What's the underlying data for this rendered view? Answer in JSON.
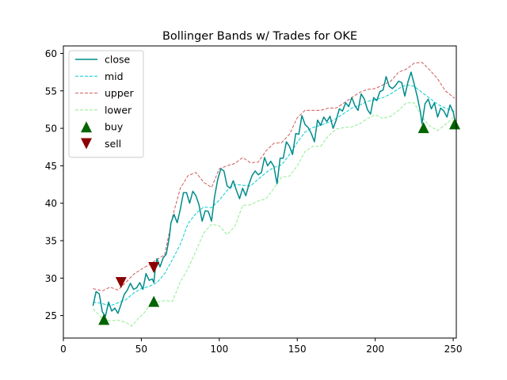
{
  "chart_data": {
    "type": "line",
    "title": "Bollinger Bands w/ Trades for OKE",
    "xlabel": "",
    "ylabel": "",
    "xlim": [
      0,
      252
    ],
    "ylim": [
      22,
      61
    ],
    "x_ticks": [
      0,
      50,
      100,
      150,
      200,
      250
    ],
    "y_ticks": [
      25,
      30,
      35,
      40,
      45,
      50,
      55,
      60
    ],
    "grid": false,
    "legend_position": "upper left",
    "series": [
      {
        "name": "close",
        "color": "#008b8b",
        "style": "solid",
        "points": [
          [
            19,
            26.3
          ],
          [
            21,
            28.2
          ],
          [
            23,
            27.9
          ],
          [
            25,
            25.5
          ],
          [
            27,
            24.9
          ],
          [
            29,
            26.8
          ],
          [
            31,
            25.6
          ],
          [
            33,
            26.0
          ],
          [
            35,
            25.3
          ],
          [
            37,
            26.5
          ],
          [
            39,
            27.8
          ],
          [
            41,
            28.4
          ],
          [
            43,
            29.3
          ],
          [
            45,
            28.5
          ],
          [
            47,
            28.7
          ],
          [
            49,
            29.4
          ],
          [
            51,
            28.5
          ],
          [
            53,
            30.6
          ],
          [
            55,
            29.7
          ],
          [
            57,
            29.9
          ],
          [
            58,
            29.4
          ],
          [
            59,
            31.3
          ],
          [
            60,
            32.6
          ],
          [
            62,
            31.5
          ],
          [
            64,
            32.7
          ],
          [
            66,
            33.2
          ],
          [
            68,
            35.5
          ],
          [
            69,
            37.4
          ],
          [
            71,
            38.5
          ],
          [
            73,
            37.4
          ],
          [
            75,
            39.2
          ],
          [
            77,
            41.4
          ],
          [
            79,
            41.4
          ],
          [
            81,
            40.0
          ],
          [
            83,
            41.6
          ],
          [
            85,
            41.0
          ],
          [
            87,
            39.8
          ],
          [
            89,
            37.6
          ],
          [
            91,
            39.0
          ],
          [
            93,
            38.9
          ],
          [
            95,
            37.6
          ],
          [
            97,
            40.9
          ],
          [
            99,
            43.2
          ],
          [
            101,
            44.6
          ],
          [
            103,
            44.3
          ],
          [
            105,
            42.3
          ],
          [
            107,
            42.0
          ],
          [
            109,
            43.0
          ],
          [
            111,
            41.7
          ],
          [
            113,
            40.6
          ],
          [
            115,
            42.0
          ],
          [
            117,
            41.0
          ],
          [
            119,
            42.5
          ],
          [
            121,
            43.7
          ],
          [
            123,
            44.3
          ],
          [
            125,
            43.8
          ],
          [
            127,
            44.1
          ],
          [
            129,
            46.1
          ],
          [
            131,
            45.0
          ],
          [
            133,
            45.6
          ],
          [
            135,
            44.9
          ],
          [
            137,
            42.6
          ],
          [
            139,
            46.0
          ],
          [
            141,
            46.0
          ],
          [
            143,
            48.2
          ],
          [
            145,
            47.6
          ],
          [
            147,
            46.5
          ],
          [
            149,
            49.3
          ],
          [
            151,
            49.2
          ],
          [
            153,
            51.7
          ],
          [
            155,
            50.5
          ],
          [
            157,
            50.1
          ],
          [
            159,
            49.3
          ],
          [
            161,
            48.2
          ],
          [
            163,
            51.1
          ],
          [
            165,
            50.4
          ],
          [
            167,
            51.5
          ],
          [
            169,
            50.9
          ],
          [
            171,
            51.6
          ],
          [
            173,
            50.0
          ],
          [
            175,
            51.1
          ],
          [
            177,
            52.6
          ],
          [
            179,
            52.3
          ],
          [
            181,
            53.4
          ],
          [
            183,
            52.9
          ],
          [
            185,
            54.1
          ],
          [
            187,
            53.0
          ],
          [
            189,
            52.4
          ],
          [
            191,
            54.6
          ],
          [
            193,
            53.9
          ],
          [
            195,
            52.5
          ],
          [
            197,
            51.9
          ],
          [
            199,
            54.1
          ],
          [
            201,
            53.7
          ],
          [
            203,
            54.9
          ],
          [
            205,
            55.1
          ],
          [
            207,
            56.9
          ],
          [
            209,
            55.6
          ],
          [
            211,
            55.3
          ],
          [
            213,
            55.7
          ],
          [
            215,
            56.3
          ],
          [
            217,
            56.1
          ],
          [
            219,
            54.3
          ],
          [
            221,
            56.2
          ],
          [
            223,
            57.5
          ],
          [
            225,
            55.9
          ],
          [
            227,
            54.2
          ],
          [
            229,
            52.2
          ],
          [
            230,
            50.6
          ],
          [
            232,
            53.3
          ],
          [
            234,
            53.9
          ],
          [
            236,
            52.6
          ],
          [
            238,
            53.4
          ],
          [
            240,
            51.5
          ],
          [
            242,
            52.7
          ],
          [
            244,
            52.3
          ],
          [
            246,
            51.5
          ],
          [
            248,
            53.1
          ],
          [
            250,
            52.2
          ],
          [
            251,
            51.2
          ]
        ]
      },
      {
        "name": "mid",
        "color": "#00ced1",
        "style": "dashed",
        "points": [
          [
            19,
            26.8
          ],
          [
            25,
            26.6
          ],
          [
            30,
            26.3
          ],
          [
            35,
            26.7
          ],
          [
            40,
            27.1
          ],
          [
            45,
            28.0
          ],
          [
            50,
            28.6
          ],
          [
            55,
            28.9
          ],
          [
            60,
            29.4
          ],
          [
            65,
            30.6
          ],
          [
            70,
            32.5
          ],
          [
            75,
            34.5
          ],
          [
            80,
            37.3
          ],
          [
            85,
            38.6
          ],
          [
            90,
            39.5
          ],
          [
            95,
            39.4
          ],
          [
            100,
            40.4
          ],
          [
            105,
            41.7
          ],
          [
            110,
            42.5
          ],
          [
            115,
            42.4
          ],
          [
            120,
            42.3
          ],
          [
            125,
            43.2
          ],
          [
            130,
            44.1
          ],
          [
            135,
            44.8
          ],
          [
            140,
            45.1
          ],
          [
            145,
            46.5
          ],
          [
            150,
            48.1
          ],
          [
            155,
            49.5
          ],
          [
            160,
            50.1
          ],
          [
            165,
            50.4
          ],
          [
            170,
            50.8
          ],
          [
            175,
            51.3
          ],
          [
            180,
            52.0
          ],
          [
            185,
            52.7
          ],
          [
            190,
            53.1
          ],
          [
            195,
            53.6
          ],
          [
            200,
            53.8
          ],
          [
            205,
            54.1
          ],
          [
            210,
            54.6
          ],
          [
            215,
            55.3
          ],
          [
            220,
            55.8
          ],
          [
            225,
            55.6
          ],
          [
            230,
            54.8
          ],
          [
            235,
            54.0
          ],
          [
            240,
            53.2
          ],
          [
            245,
            52.7
          ],
          [
            251,
            52.2
          ]
        ]
      },
      {
        "name": "upper",
        "color": "#cd5c5c",
        "style": "dashed",
        "points": [
          [
            19,
            28.6
          ],
          [
            25,
            28.3
          ],
          [
            30,
            28.8
          ],
          [
            35,
            28.4
          ],
          [
            40,
            29.4
          ],
          [
            45,
            30.5
          ],
          [
            50,
            31.2
          ],
          [
            55,
            31.8
          ],
          [
            60,
            32.5
          ],
          [
            65,
            33.1
          ],
          [
            70,
            38.2
          ],
          [
            75,
            42.0
          ],
          [
            80,
            43.7
          ],
          [
            85,
            44.1
          ],
          [
            90,
            42.8
          ],
          [
            95,
            42.1
          ],
          [
            100,
            44.6
          ],
          [
            105,
            45.0
          ],
          [
            110,
            45.3
          ],
          [
            115,
            46.1
          ],
          [
            120,
            45.4
          ],
          [
            125,
            45.5
          ],
          [
            130,
            47.0
          ],
          [
            135,
            48.0
          ],
          [
            140,
            48.1
          ],
          [
            145,
            49.2
          ],
          [
            150,
            51.4
          ],
          [
            155,
            52.4
          ],
          [
            160,
            52.4
          ],
          [
            165,
            52.4
          ],
          [
            170,
            52.7
          ],
          [
            175,
            52.7
          ],
          [
            180,
            53.4
          ],
          [
            185,
            54.1
          ],
          [
            190,
            54.8
          ],
          [
            195,
            55.2
          ],
          [
            200,
            55.3
          ],
          [
            205,
            55.8
          ],
          [
            210,
            56.3
          ],
          [
            215,
            57.5
          ],
          [
            220,
            57.9
          ],
          [
            225,
            58.7
          ],
          [
            230,
            58.8
          ],
          [
            235,
            57.8
          ],
          [
            240,
            56.6
          ],
          [
            245,
            55.0
          ],
          [
            251,
            54.0
          ]
        ]
      },
      {
        "name": "lower",
        "color": "#90ee90",
        "style": "dashed",
        "points": [
          [
            19,
            25.9
          ],
          [
            25,
            24.6
          ],
          [
            30,
            24.3
          ],
          [
            35,
            24.4
          ],
          [
            40,
            24.1
          ],
          [
            44,
            23.6
          ],
          [
            48,
            24.6
          ],
          [
            52,
            25.4
          ],
          [
            56,
            26.6
          ],
          [
            60,
            26.8
          ],
          [
            65,
            27.0
          ],
          [
            70,
            26.9
          ],
          [
            75,
            29.5
          ],
          [
            80,
            31.3
          ],
          [
            85,
            33.6
          ],
          [
            90,
            36.0
          ],
          [
            95,
            37.2
          ],
          [
            100,
            37.0
          ],
          [
            105,
            35.8
          ],
          [
            110,
            36.9
          ],
          [
            115,
            39.7
          ],
          [
            120,
            39.8
          ],
          [
            125,
            40.3
          ],
          [
            130,
            40.6
          ],
          [
            135,
            42.0
          ],
          [
            140,
            43.5
          ],
          [
            145,
            43.6
          ],
          [
            150,
            45.0
          ],
          [
            155,
            46.9
          ],
          [
            160,
            47.6
          ],
          [
            165,
            47.6
          ],
          [
            170,
            49.0
          ],
          [
            175,
            49.9
          ],
          [
            180,
            50.1
          ],
          [
            185,
            50.2
          ],
          [
            190,
            50.6
          ],
          [
            195,
            51.3
          ],
          [
            200,
            51.8
          ],
          [
            205,
            51.3
          ],
          [
            210,
            51.6
          ],
          [
            215,
            52.4
          ],
          [
            220,
            53.4
          ],
          [
            225,
            53.4
          ],
          [
            230,
            51.5
          ],
          [
            235,
            50.3
          ],
          [
            240,
            49.7
          ],
          [
            245,
            50.5
          ],
          [
            251,
            51.6
          ]
        ]
      }
    ],
    "markers": [
      {
        "name": "buy",
        "color": "#006400",
        "shape": "triangle-up",
        "points": [
          [
            26,
            24.5
          ],
          [
            58,
            26.9
          ],
          [
            231,
            50.1
          ],
          [
            251,
            50.6
          ]
        ]
      },
      {
        "name": "sell",
        "color": "#8b0000",
        "shape": "triangle-down",
        "points": [
          [
            37,
            29.4
          ],
          [
            58,
            31.4
          ]
        ]
      }
    ]
  }
}
